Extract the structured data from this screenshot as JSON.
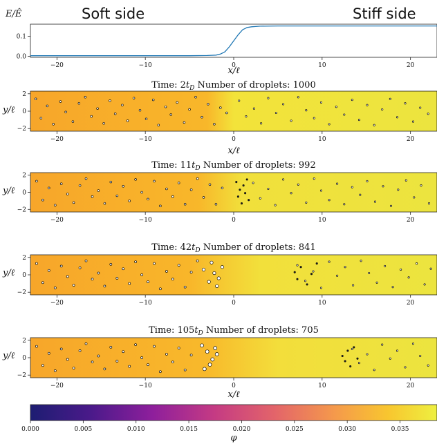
{
  "chart_data": [
    {
      "type": "line",
      "ylabel": "E/Ê",
      "xlabel": "x/ℓ",
      "xlim": [
        -23,
        23
      ],
      "ylim": [
        -0.005,
        0.16
      ],
      "xticks": [
        -20,
        -10,
        0,
        10,
        20
      ],
      "yticks": [
        0.0,
        0.1
      ],
      "annotations": [
        "Soft side",
        "Stiff side"
      ],
      "series": [
        {
          "x": [
            -23,
            -10,
            -5,
            -3,
            -2,
            -1.5,
            -1,
            -0.5,
            0,
            0.5,
            1,
            1.5,
            2,
            3,
            5,
            10,
            23
          ],
          "y": [
            0.003,
            0.003,
            0.003,
            0.004,
            0.006,
            0.011,
            0.022,
            0.047,
            0.077,
            0.107,
            0.132,
            0.143,
            0.147,
            0.15,
            0.151,
            0.151,
            0.151
          ],
          "color": "#1f77b4"
        }
      ]
    },
    {
      "type": "scatter",
      "title": "Time: 2t_D Number of droplets: 1000",
      "title_parts": [
        "Time: 2",
        "t",
        "D",
        " Number of droplets: 1000"
      ],
      "xlabel": "x/ℓ",
      "ylabel": "y/ℓ",
      "xlim": [
        -23,
        23
      ],
      "ylim": [
        -2.3,
        2.3
      ],
      "xticks": [
        -20,
        -10,
        0,
        10,
        20
      ],
      "yticks": [
        -2,
        0,
        2
      ],
      "background_gradient": [
        {
          "x": -23,
          "color": "#f7a62a"
        },
        {
          "x": -3,
          "color": "#f8b72a"
        },
        {
          "x": 0,
          "color": "#f3e33a"
        },
        {
          "x": 23,
          "color": "#ece43f"
        }
      ],
      "droplets": [
        {
          "x": [
            -22.4,
            -21.8,
            -21.1,
            -20.4,
            -19.6,
            -19,
            -18.2,
            -17.5,
            -16.8,
            -16.1,
            -15.4,
            -14.7,
            -14,
            -13.4,
            -12.6,
            -12,
            -11.3,
            -10.6,
            -9.9,
            -9.1,
            -8.5,
            -7.7,
            -7.1,
            -6.4,
            -5.6,
            -5,
            -4.3,
            -3.6,
            -2.9,
            -2.2,
            -1.5,
            -0.8
          ],
          "y": [
            1.4,
            -0.8,
            0.6,
            -1.5,
            1.1,
            -0.1,
            -1.2,
            0.9,
            1.6,
            -0.6,
            0.3,
            -1.4,
            1.2,
            -0.3,
            0.7,
            -1.1,
            1.5,
            0.1,
            -0.9,
            1.3,
            -1.6,
            0.5,
            -0.4,
            1,
            -1.3,
            0.2,
            1.6,
            -0.7,
            0.8,
            -1.5,
            0.4,
            -0.2
          ],
          "size": 1.0,
          "color": "#ffffff"
        },
        {
          "x": [
            0.6,
            1.4,
            2.3,
            3.1,
            3.9,
            4.8,
            5.6,
            6.5,
            7.3,
            8.2,
            9.1,
            9.9,
            10.8,
            11.6,
            12.5,
            13.4,
            14.2,
            15.1,
            15.9,
            16.8,
            17.7,
            18.5,
            19.4,
            20.3,
            21.1,
            22
          ],
          "y": [
            1.2,
            -0.6,
            0.3,
            -1.4,
            1.5,
            -0.2,
            0.8,
            -1.1,
            1.6,
            0.1,
            -0.8,
            1,
            -1.5,
            0.5,
            -0.4,
            1.3,
            -1,
            0.7,
            -1.6,
            0.2,
            1.4,
            -0.7,
            0.9,
            -1.2,
            0.4,
            -0.3
          ],
          "size": 0.55,
          "color": "#ffffff"
        }
      ]
    },
    {
      "type": "scatter",
      "title": "Time: 11t_D Number of droplets: 992",
      "title_parts": [
        "Time: 11",
        "t",
        "D",
        " Number of droplets: 992"
      ],
      "xlabel": "",
      "ylabel": "y/ℓ",
      "xlim": [
        -23,
        23
      ],
      "ylim": [
        -2.3,
        2.3
      ],
      "xticks": [
        -20,
        -10,
        0,
        10,
        20
      ],
      "yticks": [
        -2,
        0,
        2
      ],
      "background_gradient": [
        {
          "x": -23,
          "color": "#f7a62a"
        },
        {
          "x": -4,
          "color": "#f8b72a"
        },
        {
          "x": 1,
          "color": "#f1e03b"
        },
        {
          "x": 23,
          "color": "#ece43f"
        }
      ],
      "droplets": [
        {
          "x": [
            -22.3,
            -21.6,
            -20.9,
            -20.2,
            -19.5,
            -18.8,
            -18.1,
            -17.4,
            -16.7,
            -16,
            -15.3,
            -14.6,
            -13.9,
            -13.2,
            -12.5,
            -11.8,
            -11.1,
            -10.4,
            -9.7,
            -9,
            -8.3,
            -7.6,
            -6.9,
            -6.2,
            -5.5,
            -4.8,
            -4.1,
            -3.4,
            -2.7,
            -2,
            -1.3
          ],
          "y": [
            1.3,
            -0.9,
            0.5,
            -1.5,
            1,
            -0.2,
            -1.2,
            0.8,
            1.6,
            -0.5,
            0.2,
            -1.3,
            1.2,
            -0.4,
            0.7,
            -1,
            1.5,
            0,
            -0.8,
            1.3,
            -1.6,
            0.4,
            -0.5,
            1.1,
            -1.4,
            0.3,
            1.6,
            -0.6,
            0.9,
            -1.4,
            0.5
          ],
          "size": 1.05,
          "color": "#ffffff"
        },
        {
          "x": [
            2.2,
            3,
            3.9,
            4.7,
            5.6,
            6.5,
            7.3,
            8.2,
            9.1,
            9.9,
            10.8,
            11.7,
            12.5,
            13.4,
            14.3,
            15.1,
            16,
            16.9,
            17.8,
            18.6,
            19.5,
            20.4,
            21.2,
            22.1
          ],
          "y": [
            1.1,
            -0.7,
            0.4,
            -1.5,
            1.5,
            -0.1,
            0.9,
            -1.2,
            1.6,
            0.2,
            -0.9,
            1,
            -1.4,
            0.6,
            -0.3,
            1.3,
            -1.1,
            0.7,
            -1.6,
            0.3,
            1.4,
            -0.6,
            0.8,
            -1.3
          ],
          "size": 0.55,
          "color": "#ffffff"
        },
        {
          "x": [
            0.3,
            0.5,
            0.7,
            0.9,
            1.1,
            1.3,
            1.5,
            1.7
          ],
          "y": [
            1.2,
            -0.5,
            0.3,
            -1.3,
            0.8,
            -0.1,
            1.5,
            -0.9
          ],
          "size": 0.25,
          "color": "#222222"
        }
      ]
    },
    {
      "type": "scatter",
      "title": "Time: 42t_D Number of droplets: 841",
      "title_parts": [
        "Time: 42",
        "t",
        "D",
        " Number of droplets: 841"
      ],
      "xlabel": "",
      "ylabel": "y/ℓ",
      "xlim": [
        -23,
        23
      ],
      "ylim": [
        -2.3,
        2.3
      ],
      "xticks": [
        -20,
        -10,
        0,
        10,
        20
      ],
      "yticks": [
        -2,
        0,
        2
      ],
      "background_gradient": [
        {
          "x": -23,
          "color": "#f7a62a"
        },
        {
          "x": -5,
          "color": "#f8b62a"
        },
        {
          "x": 3,
          "color": "#f2e03b"
        },
        {
          "x": 23,
          "color": "#ece43f"
        }
      ],
      "droplets": [
        {
          "x": [
            -22.3,
            -21.6,
            -20.9,
            -20.2,
            -19.5,
            -18.8,
            -18.1,
            -17.4,
            -16.7,
            -16,
            -15.3,
            -14.6,
            -13.9,
            -13.2,
            -12.5,
            -11.8,
            -11.1,
            -10.4,
            -9.7,
            -9,
            -8.3,
            -7.6,
            -6.9,
            -6.2,
            -5.5,
            -4.8,
            -4.1
          ],
          "y": [
            1.3,
            -0.9,
            0.5,
            -1.5,
            1,
            -0.2,
            -1.2,
            0.8,
            1.6,
            -0.5,
            0.2,
            -1.3,
            1.2,
            -0.4,
            0.7,
            -1,
            1.5,
            0,
            -0.8,
            1.3,
            -1.6,
            0.4,
            -0.5,
            1.1,
            -1.4,
            0.3,
            1.6
          ],
          "size": 1.1,
          "color": "#ffffff"
        },
        {
          "x": [
            -3.4,
            -2.8,
            -2.2,
            -1.7,
            -1.3,
            -2.5,
            -1.9
          ],
          "y": [
            0.6,
            -0.8,
            0.2,
            -0.4,
            0.9,
            1.4,
            -1.3
          ],
          "size": 1.6,
          "color": "#ffffff"
        },
        {
          "x": [
            7.2,
            8.1,
            9,
            9.9,
            10.8,
            11.7,
            12.6,
            13.5,
            14.4,
            15.3,
            16.2,
            17.1,
            18,
            18.9,
            19.8,
            20.7,
            21.6,
            22.3
          ],
          "y": [
            1.1,
            -0.7,
            0.4,
            -1.5,
            1.5,
            -0.1,
            0.9,
            -1.2,
            1.6,
            0.2,
            -0.9,
            1,
            -1.4,
            0.6,
            -0.3,
            1.3,
            -1.1,
            0.7
          ],
          "size": 0.55,
          "color": "#ffffff"
        },
        {
          "x": [
            6.9,
            7.2,
            7.6,
            8.3,
            8.8,
            9.4
          ],
          "y": [
            0.3,
            -0.5,
            0.9,
            -1.1,
            0.1,
            1.3
          ],
          "size": 0.25,
          "color": "#222222"
        }
      ]
    },
    {
      "type": "scatter",
      "title": "Time: 105t_D Number of droplets: 705",
      "title_parts": [
        "Time: 105",
        "t",
        "D",
        " Number of droplets: 705"
      ],
      "xlabel": "x/ℓ",
      "ylabel": "y/ℓ",
      "xlim": [
        -23,
        23
      ],
      "ylim": [
        -2.3,
        2.3
      ],
      "xticks": [
        -20,
        -10,
        0,
        10,
        20
      ],
      "yticks": [
        -2,
        0,
        2
      ],
      "background_gradient": [
        {
          "x": -23,
          "color": "#f7a62a"
        },
        {
          "x": -3,
          "color": "#f8b92b"
        },
        {
          "x": 5,
          "color": "#f3de3b"
        },
        {
          "x": 23,
          "color": "#ece43f"
        }
      ],
      "droplets": [
        {
          "x": [
            -22.3,
            -21.6,
            -20.9,
            -20.2,
            -19.5,
            -18.8,
            -18.1,
            -17.4,
            -16.7,
            -16,
            -15.3,
            -14.6,
            -13.9,
            -13.2,
            -12.5,
            -11.8,
            -11.1,
            -10.4,
            -9.7,
            -9,
            -8.3,
            -7.6,
            -6.9,
            -6.2,
            -5.5,
            -4.8
          ],
          "y": [
            1.3,
            -0.9,
            0.5,
            -1.5,
            1,
            -0.2,
            -1.2,
            0.8,
            1.6,
            -0.5,
            0.2,
            -1.3,
            1.2,
            -0.4,
            0.7,
            -1,
            1.5,
            0,
            -0.8,
            1.3,
            -1.6,
            0.4,
            -0.5,
            1.1,
            -1.4,
            0.3
          ],
          "size": 1.1,
          "color": "#ffffff"
        },
        {
          "x": [
            -3.6,
            -3,
            -2.4,
            -1.9,
            -3.3,
            -2.7,
            -2.1
          ],
          "y": [
            1.4,
            0.7,
            -0.2,
            0.4,
            -1.3,
            -0.8,
            1.1
          ],
          "size": 1.8,
          "color": "#ffffff"
        },
        {
          "x": [
            13.4,
            14.2,
            15.1,
            15.9,
            16.8,
            17.7,
            18.5,
            19.4,
            20.3,
            21.1,
            22
          ],
          "y": [
            1,
            -0.6,
            0.4,
            -1.4,
            1.5,
            -0.1,
            0.8,
            -1.1,
            1.6,
            0.2,
            -0.9
          ],
          "size": 0.55,
          "color": "#ffffff"
        },
        {
          "x": [
            12.3,
            12.6,
            12.9,
            13.2,
            13.6,
            14
          ],
          "y": [
            0.2,
            -0.4,
            0.8,
            -1,
            1.2,
            -0.1
          ],
          "size": 0.25,
          "color": "#222222"
        }
      ]
    }
  ],
  "colorbar": {
    "label": "φ",
    "range": [
      0.0,
      0.0385
    ],
    "ticks": [
      "0.000",
      "0.005",
      "0.010",
      "0.015",
      "0.020",
      "0.025",
      "0.030",
      "0.035"
    ],
    "tick_values": [
      0.0,
      0.005,
      0.01,
      0.015,
      0.02,
      0.025,
      0.03,
      0.035
    ],
    "colormap": [
      {
        "at": 0.0,
        "color": "#1d1d72"
      },
      {
        "at": 0.15,
        "color": "#4b1a8a"
      },
      {
        "at": 0.3,
        "color": "#8e1f9c"
      },
      {
        "at": 0.45,
        "color": "#c43a84"
      },
      {
        "at": 0.6,
        "color": "#e3646a"
      },
      {
        "at": 0.75,
        "color": "#f59a4b"
      },
      {
        "at": 0.88,
        "color": "#f8c62f"
      },
      {
        "at": 1.0,
        "color": "#eef040"
      }
    ]
  }
}
